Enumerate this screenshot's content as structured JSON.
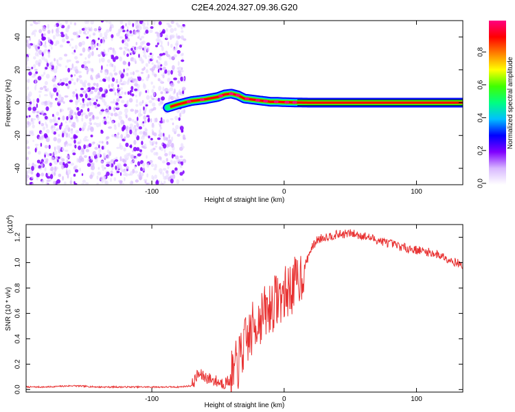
{
  "page_title": "C2E4.2024.327.09.36.G20",
  "chart_data": [
    {
      "type": "heatmap",
      "title": "C2E4.2024.327.09.36.G20",
      "xlabel": "Height of straight line (km)",
      "ylabel": "Frequency (Hz)",
      "xlim": [
        -195,
        135
      ],
      "ylim": [
        -50,
        50
      ],
      "x_ticks": [
        -100,
        0,
        100
      ],
      "x_tick_labels": [
        "-100",
        "0",
        "100"
      ],
      "y_ticks": [
        -40,
        -20,
        0,
        20,
        40
      ],
      "y_tick_labels": [
        "-40",
        "-20",
        "0",
        "20",
        "40"
      ],
      "noise_region": {
        "x_range": [
          -195,
          -75
        ],
        "y_range": [
          -50,
          50
        ]
      },
      "signal_track": {
        "x": [
          -88,
          -80,
          -75,
          -70,
          -60,
          -50,
          -45,
          -40,
          -35,
          -30,
          -25,
          -20,
          -15,
          -10,
          -5,
          0,
          5,
          10,
          20,
          40,
          60,
          80,
          100,
          120,
          135
        ],
        "y": [
          -3,
          -1,
          0,
          1,
          2,
          3.5,
          5,
          5.5,
          4.5,
          2.5,
          2,
          1.5,
          1,
          0.5,
          0.5,
          0.3,
          0.2,
          0.1,
          0,
          0,
          0,
          0,
          0,
          0,
          0
        ]
      },
      "colorbar": {
        "label": "Normalized spectral amplitude",
        "range": [
          0,
          1
        ],
        "ticks": [
          0.0,
          0.2,
          0.4,
          0.6,
          0.8
        ],
        "tick_labels": [
          "0.0",
          "0.2",
          "0.4",
          "0.6",
          "0.8"
        ],
        "colors": [
          "#ffffff",
          "#d8b8ff",
          "#8000ff",
          "#0000ff",
          "#00c0ff",
          "#00ff80",
          "#40ff00",
          "#ffff00",
          "#ff8000",
          "#ff0000",
          "#ff0080"
        ]
      },
      "grid": false
    },
    {
      "type": "line",
      "xlabel": "Height of straight line (km)",
      "ylabel": "SNR (10 * v/v)",
      "y_multiplier": "(x10",
      "y_multiplier_exp": "4",
      "y_multiplier_close": ")",
      "xlim": [
        -195,
        135
      ],
      "ylim": [
        -0.02,
        1.3
      ],
      "x_ticks": [
        -100,
        0,
        100
      ],
      "x_tick_labels": [
        "-100",
        "0",
        "100"
      ],
      "y_ticks": [
        0.0,
        0.2,
        0.4,
        0.6,
        0.8,
        1.0,
        1.2
      ],
      "y_tick_labels": [
        "0.0",
        "0.2",
        "0.4",
        "0.6",
        "0.8",
        "1.0",
        "1.2"
      ],
      "line_color": "#e83030",
      "series": [
        {
          "x": [
            -195,
            -180,
            -160,
            -140,
            -120,
            -100,
            -80,
            -70,
            -65,
            -60,
            -55,
            -50,
            -45,
            -40,
            -35,
            -30,
            -25,
            -20,
            -15,
            -10,
            -5,
            0,
            5,
            10,
            15,
            20,
            25,
            30,
            40,
            50,
            60,
            70,
            80,
            90,
            100,
            110,
            120,
            130,
            135
          ],
          "y": [
            0.02,
            0.02,
            0.03,
            0.02,
            0.02,
            0.02,
            0.02,
            0.03,
            0.12,
            0.1,
            0.08,
            0.06,
            0.05,
            0.08,
            0.2,
            0.35,
            0.45,
            0.55,
            0.6,
            0.65,
            0.72,
            0.75,
            0.8,
            0.85,
            0.95,
            1.1,
            1.18,
            1.2,
            1.22,
            1.23,
            1.21,
            1.18,
            1.15,
            1.12,
            1.1,
            1.08,
            1.05,
            1.0,
            0.98
          ]
        }
      ],
      "grid": false
    }
  ]
}
